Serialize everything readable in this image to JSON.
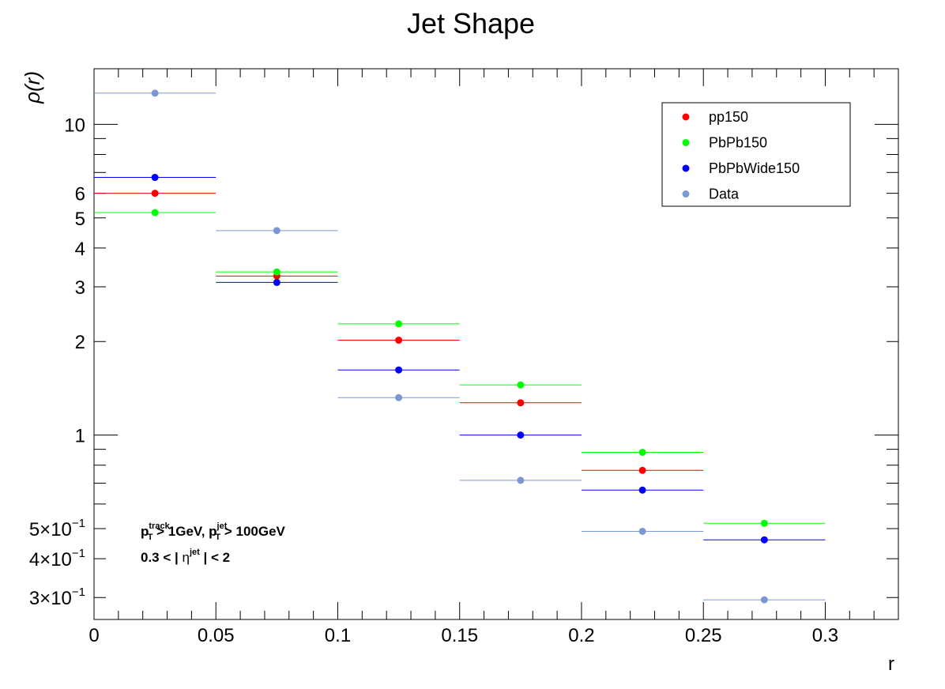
{
  "chart_data": {
    "type": "scatter",
    "title": "Jet Shape",
    "xlabel": "r",
    "ylabel": "ρ(r)",
    "xlim": [
      0,
      0.33
    ],
    "ylim": [
      0.255,
      15.1
    ],
    "ylog": true,
    "grid": false,
    "legend_position": "top-right",
    "x_ticks": [
      {
        "value": 0,
        "label": "0"
      },
      {
        "value": 0.05,
        "label": "0.05"
      },
      {
        "value": 0.1,
        "label": "0.1"
      },
      {
        "value": 0.15,
        "label": "0.15"
      },
      {
        "value": 0.2,
        "label": "0.2"
      },
      {
        "value": 0.25,
        "label": "0.25"
      },
      {
        "value": 0.3,
        "label": "0.3"
      }
    ],
    "y_ticks": [
      {
        "value": 0.3,
        "mant": "3",
        "exp": "−1"
      },
      {
        "value": 0.4,
        "mant": "4",
        "exp": "−1"
      },
      {
        "value": 0.5,
        "mant": "5",
        "exp": "−1"
      },
      {
        "value": 1,
        "mant": "1",
        "exp": ""
      },
      {
        "value": 2,
        "mant": "2",
        "exp": ""
      },
      {
        "value": 3,
        "mant": "3",
        "exp": ""
      },
      {
        "value": 4,
        "mant": "4",
        "exp": ""
      },
      {
        "value": 5,
        "mant": "5",
        "exp": ""
      },
      {
        "value": 6,
        "mant": "6",
        "exp": ""
      },
      {
        "value": 10,
        "mant": "10",
        "exp": ""
      }
    ],
    "x": [
      0.025,
      0.075,
      0.125,
      0.175,
      0.225,
      0.275
    ],
    "bin_half_width": 0.025,
    "series": [
      {
        "name": "pp150",
        "color": "#ff0000",
        "values": [
          6.0,
          3.25,
          2.02,
          1.27,
          0.77,
          null
        ]
      },
      {
        "name": "PbPb150",
        "color": "#00ff00",
        "values": [
          5.2,
          3.35,
          2.28,
          1.45,
          0.88,
          0.52
        ]
      },
      {
        "name": "PbPbWide150",
        "color": "#0000ff",
        "values": [
          6.75,
          3.1,
          1.62,
          1.0,
          0.665,
          0.46
        ]
      },
      {
        "name": "Data",
        "color": "#7b98d4",
        "values": [
          12.6,
          4.55,
          1.32,
          0.715,
          0.49,
          0.295
        ]
      }
    ],
    "annotations": [
      {
        "text": "p_T^track > 1GeV, p_T^jet > 100GeV"
      },
      {
        "text": "0.3 < | η^jet | < 2"
      }
    ]
  }
}
